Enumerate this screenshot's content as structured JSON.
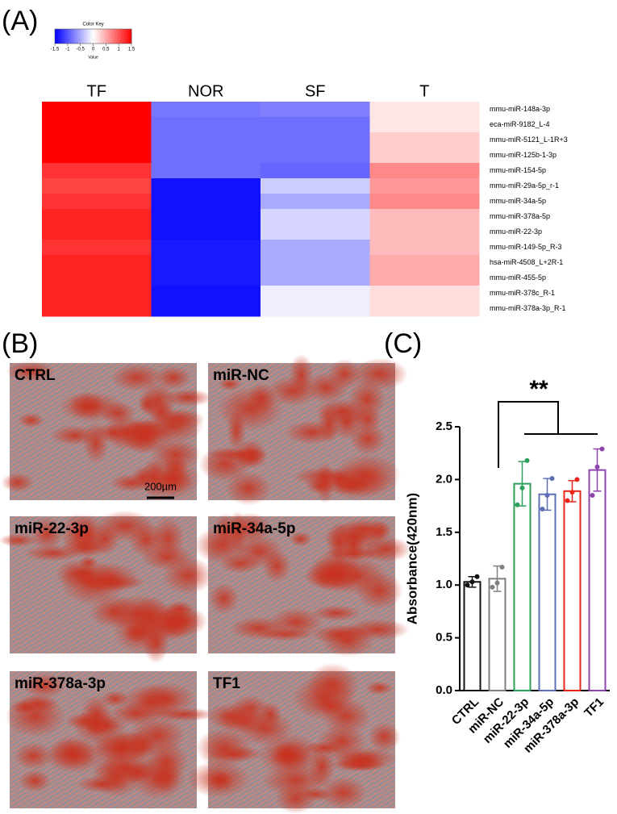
{
  "panel_labels": [
    "(A)",
    "(B)",
    "(C)"
  ],
  "micrographs": {
    "labels": [
      "CTRL",
      "miR-NC",
      "miR-22-3p",
      "miR-34a-5p",
      "miR-378a-3p",
      "TF1"
    ],
    "scale_bar": "200µm"
  },
  "chart_data": [
    {
      "type": "heatmap",
      "color_key": {
        "title": "Color Key",
        "xlabel": "Value",
        "xlim": [
          -1.5,
          1.5
        ],
        "xticks": [
          -1.5,
          -1,
          -0.5,
          0,
          0.5,
          1,
          1.5
        ]
      },
      "colors": [
        "#0000ff",
        "#ffffff",
        "#ff0000"
      ],
      "columns": [
        "TF",
        "NOR",
        "SF",
        "T"
      ],
      "rows": [
        "mmu-miR-148a-3p",
        "eca-miR-9182_L-4",
        "mmu-miR-5121_L-1R+3",
        "mmu-miR-125b-1-3p",
        "mmu-miR-154-5p",
        "mmu-miR-29a-5p_r-1",
        "mmu-miR-34a-5p",
        "mmu-miR-378a-5p",
        "mmu-miR-22-3p",
        "mmu-miR-149-5p_R-3",
        "hsa-miR-4508_L+2R-1",
        "mmu-miR-455-5p",
        "mmu-miR-378c_R-1",
        "mmu-miR-378a-3p_R-1"
      ],
      "values": [
        [
          1.5,
          -0.8,
          -0.75,
          0.15
        ],
        [
          1.5,
          -0.85,
          -0.85,
          0.15
        ],
        [
          1.5,
          -0.85,
          -0.85,
          0.3
        ],
        [
          1.5,
          -0.85,
          -0.85,
          0.3
        ],
        [
          1.2,
          -0.85,
          -0.9,
          0.7
        ],
        [
          1.1,
          -1.4,
          -0.3,
          0.6
        ],
        [
          1.2,
          -1.4,
          -0.5,
          0.7
        ],
        [
          1.3,
          -1.4,
          -0.25,
          0.4
        ],
        [
          1.3,
          -1.4,
          -0.25,
          0.4
        ],
        [
          1.2,
          -1.35,
          -0.5,
          0.4
        ],
        [
          1.3,
          -1.35,
          -0.5,
          0.5
        ],
        [
          1.3,
          -1.35,
          -0.5,
          0.5
        ],
        [
          1.3,
          -1.4,
          -0.1,
          0.2
        ],
        [
          1.3,
          -1.4,
          -0.1,
          0.2
        ]
      ]
    },
    {
      "type": "bar",
      "ylabel": "Absorbance(420nm)",
      "annotation": "**",
      "categories": [
        "CTRL",
        "miR-NC",
        "miR-22-3p",
        "miR-34a-5p",
        "miR-378a-3p",
        "TF1"
      ],
      "values": [
        1.03,
        1.06,
        1.96,
        1.86,
        1.89,
        2.09
      ],
      "errors": [
        0.05,
        0.12,
        0.21,
        0.15,
        0.1,
        0.2
      ],
      "points": [
        [
          1.0,
          1.03,
          1.08
        ],
        [
          0.98,
          1.02,
          1.17
        ],
        [
          1.76,
          1.92,
          2.18
        ],
        [
          1.72,
          1.85,
          2.01
        ],
        [
          1.8,
          1.88,
          2.0
        ],
        [
          1.85,
          2.12,
          2.29
        ]
      ],
      "colors": [
        "#111111",
        "#808080",
        "#2ca05a",
        "#5b6fb5",
        "#e8271a",
        "#8e44ad"
      ],
      "ylim": [
        0,
        2.5
      ],
      "yticks": [
        {
          "value": 0,
          "label": "0.0"
        },
        0.5,
        {
          "value": 1,
          "label": "1.0"
        },
        1.5,
        {
          "value": 2,
          "label": "2.0"
        },
        2.5
      ]
    }
  ]
}
